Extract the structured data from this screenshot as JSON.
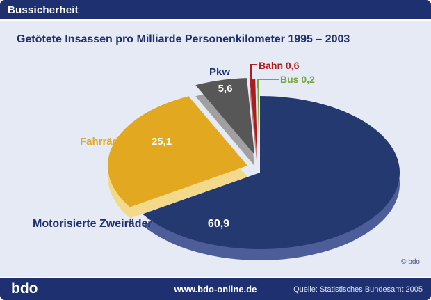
{
  "header": {
    "title": "Bussicherheit"
  },
  "chart": {
    "title": "Getötete Insassen pro Milliarde Personenkilometer 1995 – 2003",
    "copyright": "© bdo"
  },
  "chart_data": {
    "type": "pie",
    "title": "Getötete Insassen pro Milliarde Personenkilometer 1995 – 2003",
    "unit": "Getötete Insassen pro Milliarde Personenkilometer",
    "period": "1995 – 2003",
    "legend_position": "callouts",
    "slices": [
      {
        "label": "Motorisierte Zweiräder",
        "value": 60.9,
        "display": "60,9",
        "color": "#24396f",
        "side_color": "#4d5d99",
        "label_color": "#1e3070"
      },
      {
        "label": "Fahrräder",
        "value": 25.1,
        "display": "25,1",
        "color": "#e2a81f",
        "side_color": "#f3d98a",
        "label_color": "#e2a81f"
      },
      {
        "label": "Pkw",
        "value": 5.6,
        "display": "5,6",
        "color": "#575757",
        "side_color": "#a0a0a0",
        "label_color": "#1e3070"
      },
      {
        "label": "Bahn",
        "value": 0.6,
        "display": "0,6",
        "color": "#a81e1e",
        "side_color": "#c97c7c",
        "label_color": "#b11c1c"
      },
      {
        "label": "Bus",
        "value": 0.2,
        "display": "0,2",
        "color": "#74a632",
        "side_color": "#aecb87",
        "label_color": "#76a73a"
      }
    ]
  },
  "footer": {
    "logo": "bdo",
    "url": "www.bdo-online.de",
    "source": "Quelle: Statistisches Bundesamt 2005"
  },
  "colors": {
    "bar_bg": "#1e3070",
    "content_bg": "#e5eaf4",
    "title_text": "#1e3070"
  }
}
